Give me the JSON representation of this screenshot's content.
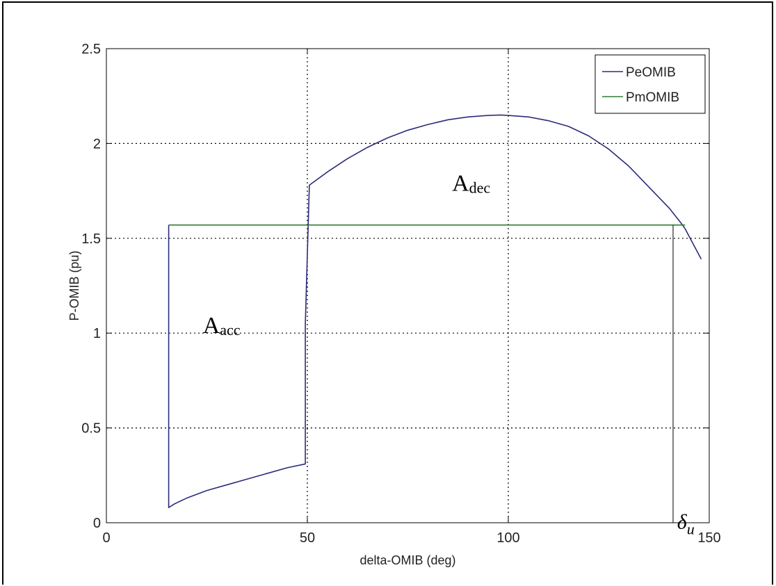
{
  "chart_data": {
    "type": "line",
    "title": "",
    "xlabel": "delta-OMIB (deg)",
    "ylabel": "P-OMIB (pu)",
    "xlim": [
      0,
      150
    ],
    "ylim": [
      0,
      2.5
    ],
    "xticks": [
      0,
      50,
      100,
      150
    ],
    "yticks": [
      0,
      0.5,
      1,
      1.5,
      2,
      2.5
    ],
    "xtick_labels": [
      "0",
      "50",
      "100",
      "150"
    ],
    "ytick_labels": [
      "0",
      "0.5",
      "1",
      "1.5",
      "2",
      "2.5"
    ],
    "grid": true,
    "legend_position": "top-right",
    "series": [
      {
        "name": "PeOMIB",
        "color": "#2b2b7a",
        "x": [
          15.5,
          15.5,
          17,
          20,
          25,
          30,
          35,
          40,
          45,
          49.5,
          49.5,
          50.5,
          55,
          60,
          65,
          70,
          75,
          80,
          85,
          90,
          95,
          98,
          100,
          105,
          110,
          115,
          120,
          125,
          130,
          135,
          140,
          143,
          144,
          146,
          148
        ],
        "y": [
          1.57,
          0.08,
          0.1,
          0.13,
          0.17,
          0.2,
          0.23,
          0.26,
          0.29,
          0.31,
          1.05,
          1.78,
          1.85,
          1.92,
          1.98,
          2.03,
          2.07,
          2.1,
          2.125,
          2.14,
          2.148,
          2.15,
          2.148,
          2.14,
          2.12,
          2.09,
          2.04,
          1.97,
          1.88,
          1.77,
          1.66,
          1.58,
          1.55,
          1.47,
          1.39
        ]
      },
      {
        "name": "PmOMIB",
        "color": "#2e7d32",
        "x": [
          15.5,
          144
        ],
        "y": [
          1.57,
          1.57
        ]
      }
    ],
    "annotations": [
      {
        "main": "A",
        "sub": "acc",
        "x": 24,
        "y": 1.0
      },
      {
        "main": "A",
        "sub": "dec",
        "x": 86,
        "y": 1.75
      },
      {
        "main": "δ",
        "sub": "u",
        "x": 142,
        "y": 0.02
      }
    ],
    "marker_line": {
      "x": 141,
      "y_from": 0,
      "y_to": 1.57
    }
  }
}
